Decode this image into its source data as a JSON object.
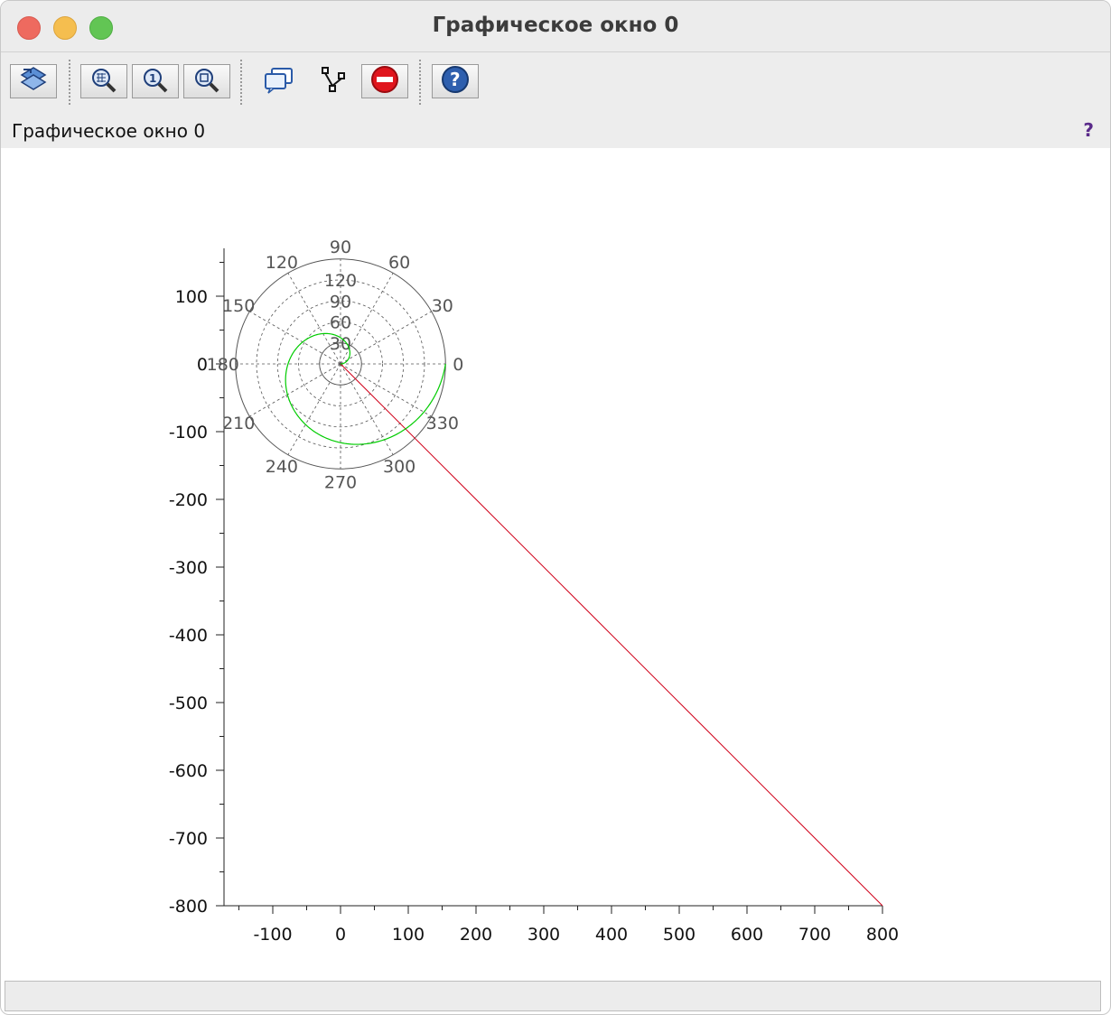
{
  "window": {
    "title": "Графическое окно 0",
    "subtitle": "Графическое окно 0",
    "help_mark": "?"
  },
  "toolbar": {
    "buttons": [
      {
        "icon": "rotate-icon"
      },
      {
        "icon": "zoom-grid-icon"
      },
      {
        "icon": "zoom-reset-icon"
      },
      {
        "icon": "zoom-area-icon"
      },
      {
        "icon": "datatip-icon"
      },
      {
        "icon": "edit-data-icon"
      },
      {
        "icon": "stop-icon"
      },
      {
        "icon": "help-icon"
      }
    ]
  },
  "colors": {
    "line": "#d0021b",
    "spiral": "#00cc00",
    "polar_grid": "#555555"
  },
  "chart_data": {
    "type": "line",
    "x_ticks": [
      "-100",
      "0",
      "100",
      "200",
      "300",
      "400",
      "500",
      "600",
      "700",
      "800"
    ],
    "y_ticks": [
      "100",
      "0",
      "-100",
      "-200",
      "-300",
      "-400",
      "-500",
      "-600",
      "-700",
      "-800"
    ],
    "xlim": [
      -170,
      800
    ],
    "ylim": [
      -800,
      170
    ],
    "series": [
      {
        "type": "line",
        "color": "red",
        "x": [
          0,
          800
        ],
        "y": [
          0,
          -800
        ]
      },
      {
        "type": "polar_spiral",
        "color": "green",
        "theta_deg_range": [
          0,
          360
        ],
        "r_range": [
          0,
          155
        ]
      }
    ],
    "polar_overlay": {
      "center": [
        0,
        0
      ],
      "outer_radius": 155,
      "ring_values": [
        30,
        60,
        90,
        120
      ],
      "ring_labels": [
        "30",
        "60",
        "90",
        "120"
      ],
      "angle_labels": [
        "0",
        "30",
        "60",
        "90",
        "120",
        "150",
        "180",
        "210",
        "240",
        "270",
        "300",
        "330"
      ]
    }
  }
}
